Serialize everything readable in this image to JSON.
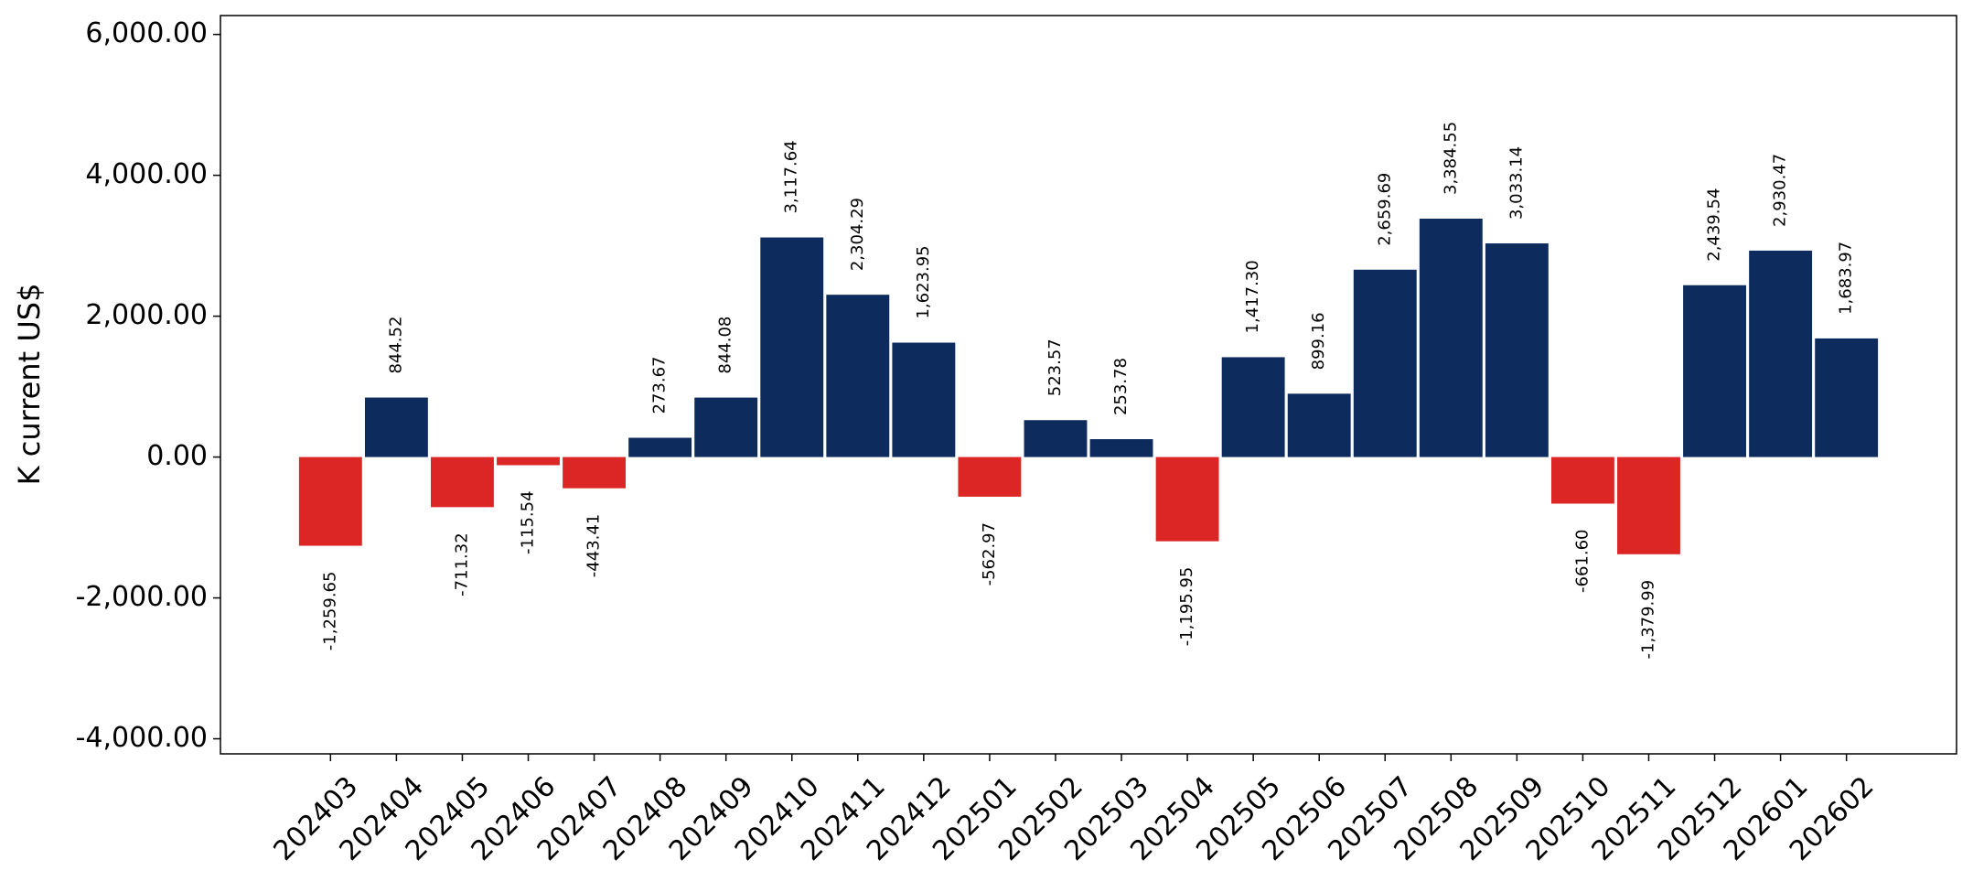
{
  "chart_data": {
    "type": "bar",
    "ylabel": "K current US$",
    "categories": [
      "202403",
      "202404",
      "202405",
      "202406",
      "202407",
      "202408",
      "202409",
      "202410",
      "202411",
      "202412",
      "202501",
      "202502",
      "202503",
      "202504",
      "202505",
      "202506",
      "202507",
      "202508",
      "202509",
      "202510",
      "202511",
      "202512",
      "202601",
      "202602"
    ],
    "values": [
      -1259.65,
      844.52,
      -711.32,
      -115.54,
      -443.41,
      273.67,
      844.08,
      3117.64,
      2304.29,
      1623.95,
      -562.97,
      523.57,
      253.78,
      -1195.95,
      1417.3,
      899.16,
      2659.69,
      3384.55,
      3033.14,
      -661.6,
      -1379.99,
      2439.54,
      2930.47,
      1683.97
    ],
    "value_labels": [
      "-1,259.65",
      "844.52",
      "-711.32",
      "-115.54",
      "-443.41",
      "273.67",
      "844.08",
      "3,117.64",
      "2,304.29",
      "1,623.95",
      "-562.97",
      "523.57",
      "253.78",
      "-1,195.95",
      "1,417.30",
      "899.16",
      "2,659.69",
      "3,384.55",
      "3,033.14",
      "-661.60",
      "-1,379.99",
      "2,439.54",
      "2,930.47",
      "1,683.97"
    ],
    "colors": {
      "positive": "#0d2b5c",
      "negative": "#dc2626"
    },
    "ylim": [
      -4214,
      6268
    ],
    "yticks": [
      {
        "value": -4000,
        "label": "-4,000.00"
      },
      {
        "value": -2000,
        "label": "-2,000.00"
      },
      {
        "value": 0,
        "label": "0.00"
      },
      {
        "value": 2000,
        "label": "2,000.00"
      },
      {
        "value": 4000,
        "label": "4,000.00"
      },
      {
        "value": 6000,
        "label": "6,000.00"
      }
    ],
    "grid": false
  }
}
